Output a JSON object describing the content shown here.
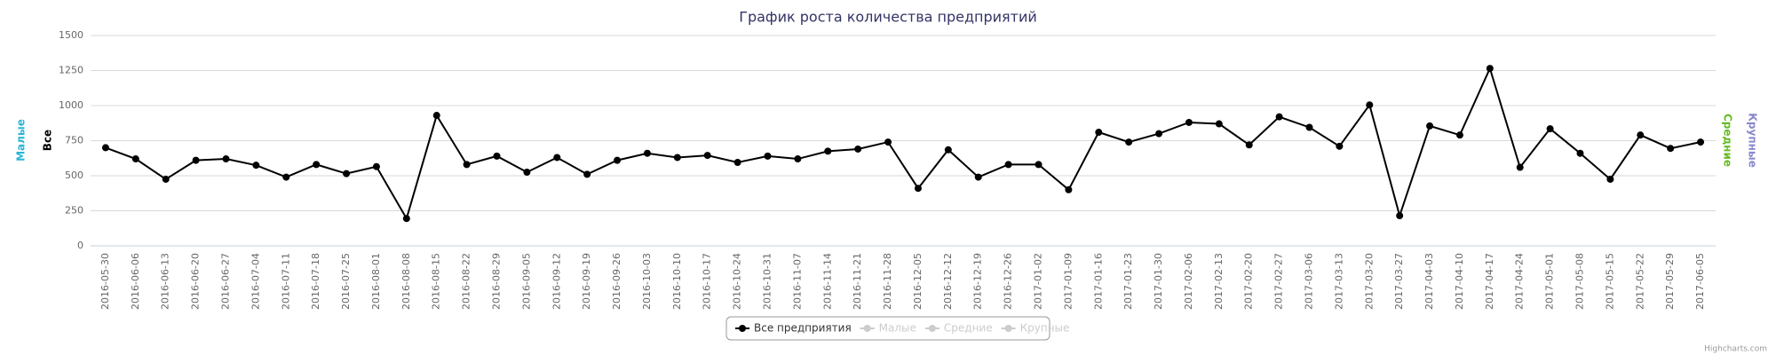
{
  "chart_data": {
    "type": "line",
    "title": "График роста количества предприятий",
    "categories": [
      "2016-05-30",
      "2016-06-06",
      "2016-06-13",
      "2016-06-20",
      "2016-06-27",
      "2016-07-04",
      "2016-07-11",
      "2016-07-18",
      "2016-07-25",
      "2016-08-01",
      "2016-08-08",
      "2016-08-15",
      "2016-08-22",
      "2016-08-29",
      "2016-09-05",
      "2016-09-12",
      "2016-09-19",
      "2016-09-26",
      "2016-10-03",
      "2016-10-10",
      "2016-10-17",
      "2016-10-24",
      "2016-10-31",
      "2016-11-07",
      "2016-11-14",
      "2016-11-21",
      "2016-11-28",
      "2016-12-05",
      "2016-12-12",
      "2016-12-19",
      "2016-12-26",
      "2017-01-02",
      "2017-01-09",
      "2017-01-16",
      "2017-01-23",
      "2017-01-30",
      "2017-02-06",
      "2017-02-13",
      "2017-02-20",
      "2017-02-27",
      "2017-03-06",
      "2017-03-13",
      "2017-03-20",
      "2017-03-27",
      "2017-04-03",
      "2017-04-10",
      "2017-04-17",
      "2017-04-24",
      "2017-05-01",
      "2017-05-08",
      "2017-05-15",
      "2017-05-22",
      "2017-05-29",
      "2017-06-05"
    ],
    "series": [
      {
        "name": "Все предприятия",
        "color": "#000000",
        "values": [
          700,
          620,
          475,
          610,
          620,
          575,
          490,
          580,
          515,
          565,
          195,
          930,
          580,
          640,
          525,
          630,
          510,
          610,
          660,
          630,
          645,
          595,
          640,
          620,
          675,
          690,
          740,
          410,
          685,
          490,
          580,
          580,
          400,
          810,
          740,
          800,
          880,
          870,
          720,
          920,
          845,
          710,
          1005,
          215,
          855,
          790,
          1265,
          560,
          835,
          660,
          475,
          790,
          695,
          740
        ]
      }
    ],
    "hidden_series": [
      "Малые",
      "Средние",
      "Крупные"
    ],
    "axis_titles_left": [
      {
        "text": "Малые",
        "color": "#2bb5d8"
      },
      {
        "text": "Все",
        "color": "#000000"
      }
    ],
    "axis_titles_right": [
      {
        "text": "Средние",
        "color": "#66bb22"
      },
      {
        "text": "Крупные",
        "color": "#8888cc"
      }
    ],
    "ylim": [
      0,
      1500
    ],
    "yticks": [
      0,
      250,
      500,
      750,
      1000,
      1250,
      1500
    ],
    "grid": true,
    "credits": "Highcharts.com"
  }
}
